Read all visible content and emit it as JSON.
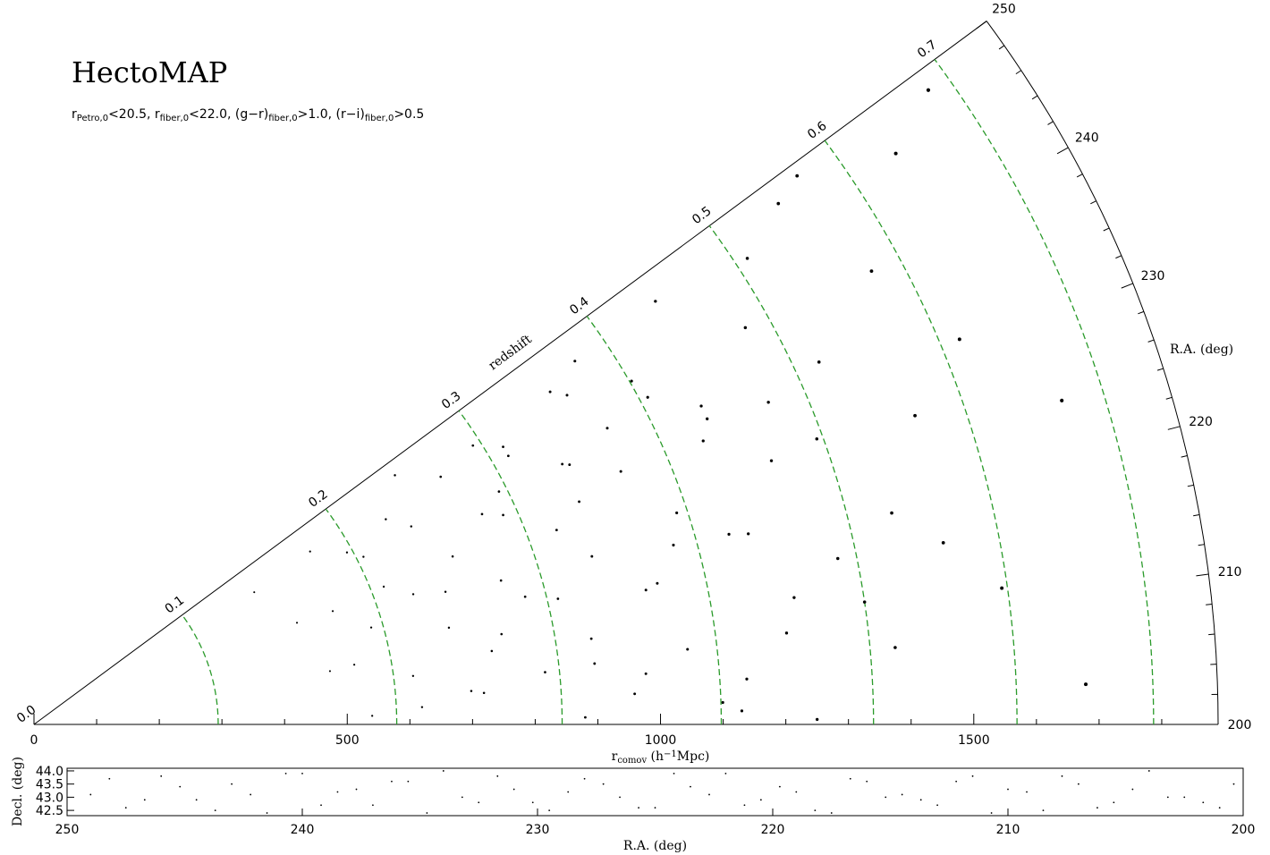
{
  "chart_data": [
    {
      "type": "wedge",
      "title": "HectoMAP",
      "subtitle": [
        {
          "text": "r"
        },
        {
          "text": "Petro,0",
          "sub": true
        },
        {
          "text": "<20.5, r"
        },
        {
          "text": "fiber,0",
          "sub": true
        },
        {
          "text": "<22.0, (g−r)"
        },
        {
          "text": "fiber,0",
          "sub": true
        },
        {
          "text": ">1.0, (r−i)"
        },
        {
          "text": "fiber,0",
          "sub": true
        },
        {
          "text": ">0.5"
        }
      ],
      "x_label": [
        {
          "text": "r"
        },
        {
          "text": "comov",
          "sub": true
        },
        {
          "text": " (h"
        },
        {
          "text": "−1",
          "sup": true
        },
        {
          "text": "Mpc)"
        }
      ],
      "ra_label": "R.A. (deg)",
      "redshift_label": "redshift",
      "xlim": [
        0,
        1890
      ],
      "xticks": [
        0,
        500,
        1000,
        1500
      ],
      "xminor": [
        100,
        200,
        300,
        400,
        600,
        700,
        800,
        900,
        1100,
        1200,
        1300,
        1400,
        1600,
        1700,
        1800
      ],
      "ralim": [
        200,
        250
      ],
      "raticks": [
        200,
        210,
        220,
        230,
        240,
        250
      ],
      "raminor": [
        202,
        204,
        206,
        208,
        212,
        214,
        216,
        218,
        222,
        224,
        226,
        228,
        232,
        234,
        236,
        238,
        242,
        244,
        246,
        248
      ],
      "redshift": {
        "z": [
          {
            "value": 0,
            "label": "0.0"
          },
          0.1,
          0.2,
          0.3,
          0.4,
          0.5,
          0.6,
          0.7
        ],
        "r": [
          0,
          294,
          579,
          843,
          1097,
          1340,
          1569,
          1787
        ]
      },
      "redshift_color": "#2a9a2a",
      "color": "#000000",
      "x": [
        248,
        247,
        245,
        246,
        243,
        241,
        244,
        242,
        240,
        238,
        239,
        236,
        237,
        235,
        233,
        234,
        232,
        230,
        231,
        229,
        228,
        227,
        226,
        225,
        224,
        223,
        222,
        221,
        220,
        219,
        218,
        217,
        216,
        215,
        214,
        213,
        212,
        211,
        210,
        209,
        208,
        207,
        206,
        205,
        204,
        203,
        202,
        201,
        249,
        246.5,
        244.5,
        241.5,
        238.5,
        235.5,
        232.5,
        229.5,
        226.5,
        223.5,
        220.5,
        217.5,
        214.5,
        211.5,
        208.5,
        205.5,
        202.5,
        200.5,
        247.5,
        243.5,
        239.5,
        236.5,
        233.5,
        230.5,
        227.5,
        224.5,
        221.5,
        218.5,
        215.5,
        212.5,
        209.5,
        206.5,
        203.5,
        201.5,
        248.5,
        245.5,
        242.5,
        240.5,
        237.5,
        234.5,
        231.5,
        228.5
      ],
      "values": [
        1450,
        1200,
        980,
        1650,
        760,
        1100,
        520,
        870,
        1300,
        680,
        1520,
        940,
        590,
        1180,
        820,
        1380,
        1020,
        720,
        1600,
        450,
        890,
        1250,
        640,
        1080,
        1720,
        930,
        560,
        1150,
        810,
        1410,
        680,
        1000,
        1310,
        760,
        480,
        1230,
        900,
        1560,
        610,
        1050,
        820,
        1380,
        700,
        1140,
        960,
        1680,
        540,
        880,
        1500,
        1040,
        830,
        650,
        1110,
        950,
        1280,
        600,
        1490,
        780,
        1180,
        1020,
        520,
        1340,
        900,
        720,
        1100,
        1250,
        700,
        1000,
        570,
        830,
        1180,
        940,
        1330,
        690,
        1060,
        860,
        1480,
        740,
        1210,
        980,
        620,
        1130,
        1750,
        1360,
        410,
        870,
        1030,
        790,
        1160,
        510
      ]
    },
    {
      "type": "scatter",
      "xlabel": "R.A. (deg)",
      "ylabel": "Decl. (deg)",
      "xlim": [
        250,
        200
      ],
      "ylim": [
        42.3,
        44.1
      ],
      "xticks": [
        250,
        240,
        230,
        220,
        210,
        200
      ],
      "yticks": [
        42.5,
        {
          "value": 43,
          "label": "43.0"
        },
        43.5,
        {
          "value": 44,
          "label": "44.0"
        }
      ],
      "color": "#000000",
      "x": [
        249,
        247.5,
        246,
        244.5,
        243,
        241.5,
        240,
        238.5,
        237,
        235.5,
        234,
        232.5,
        231,
        229.5,
        228,
        226.5,
        225,
        223.5,
        222,
        220.5,
        219,
        217.5,
        216,
        214.5,
        213,
        211.5,
        210,
        208.5,
        207,
        205.5,
        204,
        202.5,
        201,
        248.2,
        246.7,
        245.2,
        243.7,
        242.2,
        240.7,
        239.2,
        237.7,
        236.2,
        234.7,
        233.2,
        231.7,
        230.2,
        228.7,
        227.2,
        225.7,
        224.2,
        222.7,
        221.2,
        219.7,
        218.2,
        216.7,
        215.2,
        213.7,
        212.2,
        210.7,
        209.2,
        207.7,
        206.2,
        204.7,
        203.2,
        201.7,
        200.4
      ],
      "values": [
        43.1,
        42.6,
        43.8,
        42.9,
        43.5,
        42.4,
        43.9,
        43.2,
        42.7,
        43.6,
        44.0,
        42.8,
        43.3,
        42.5,
        43.7,
        43.0,
        42.6,
        43.4,
        43.9,
        42.9,
        43.2,
        42.4,
        43.6,
        43.1,
        42.7,
        43.8,
        43.3,
        42.5,
        43.5,
        42.8,
        44.0,
        43.0,
        42.6,
        43.7,
        42.9,
        43.4,
        42.5,
        43.1,
        43.9,
        42.7,
        43.3,
        43.6,
        42.4,
        43.0,
        43.8,
        42.8,
        43.2,
        43.5,
        42.6,
        43.9,
        43.1,
        42.7,
        43.4,
        42.5,
        43.7,
        43.0,
        42.9,
        43.6,
        42.4,
        43.2,
        43.8,
        42.6,
        43.3,
        43.0,
        42.8,
        43.5
      ]
    }
  ]
}
